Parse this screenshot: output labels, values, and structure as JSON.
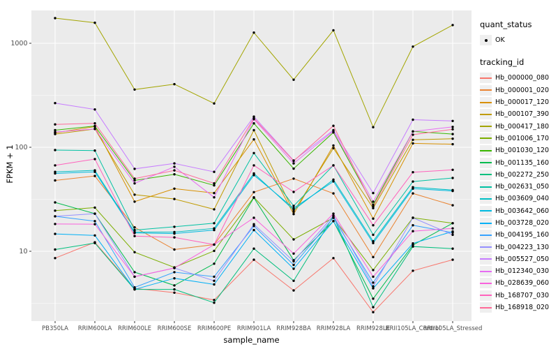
{
  "chart_data": {
    "type": "line",
    "title": "",
    "xlabel": "sample_name",
    "ylabel": "FPKM + 1",
    "y_scale": "log10",
    "y_ticks": [
      10,
      100,
      1000
    ],
    "y_minor_ticks": [
      3.162,
      31.62,
      316.2
    ],
    "ylim": [
      2.1,
      2100
    ],
    "grid": true,
    "panel_bg": "#EBEBEB",
    "grid_color": "#FFFFFF",
    "point_color": "#000000",
    "tick_label_color": "#4D4D4D",
    "legend_position": "right",
    "categories": [
      "PB350LA",
      "RRIM600LA",
      "RRIM600LE",
      "RRIM600SE",
      "RRIM600PE",
      "RRIM901LA",
      "RRIM928BA",
      "RRIM928LA",
      "RRIM928LE",
      "RRII105LA_Control",
      "RRII105LA_Stressed"
    ],
    "legend": {
      "quant_status": {
        "title": "quant_status",
        "items": [
          {
            "label": "OK",
            "symbol": "point"
          }
        ]
      },
      "tracking_id": {
        "title": "tracking_id"
      }
    },
    "series": [
      {
        "name": "Hb_000000_080",
        "color": "#F8766D",
        "values": [
          8.6,
          12.2,
          4.4,
          4.0,
          3.4,
          8.3,
          4.2,
          8.6,
          2.6,
          6.5,
          8.3
        ]
      },
      {
        "name": "Hb_000001_020",
        "color": "#EA8331",
        "values": [
          48,
          53,
          17.0,
          10.4,
          11.6,
          37,
          50,
          36,
          8.8,
          36,
          27.7
        ]
      },
      {
        "name": "Hb_000017_120",
        "color": "#D89000",
        "values": [
          138,
          158,
          30,
          40,
          36.3,
          119,
          22.8,
          104,
          20.6,
          109,
          107
        ]
      },
      {
        "name": "Hb_000107_390",
        "color": "#C09B00",
        "values": [
          134,
          150,
          35,
          31.8,
          25.3,
          146,
          24,
          98,
          26,
          118,
          121
        ]
      },
      {
        "name": "Hb_000417_180",
        "color": "#A3A500",
        "values": [
          1745,
          1574,
          359,
          404,
          264,
          1267,
          446,
          1334,
          156,
          929,
          1496
        ]
      },
      {
        "name": "Hb_001006_170",
        "color": "#7CAE00",
        "values": [
          24.6,
          26.3,
          9.8,
          7.0,
          10.1,
          33,
          13,
          21,
          6.6,
          21,
          18.6
        ]
      },
      {
        "name": "Hb_001030_120",
        "color": "#39B600",
        "values": [
          146,
          160,
          48,
          55,
          43,
          170,
          62.3,
          139,
          28,
          142,
          134
        ]
      },
      {
        "name": "Hb_001135_160",
        "color": "#00BB4E",
        "values": [
          29.5,
          23,
          6.3,
          4.7,
          7.6,
          32.7,
          8.2,
          19.5,
          3.5,
          11.5,
          18.6
        ]
      },
      {
        "name": "Hb_002272_250",
        "color": "#00BF7D",
        "values": [
          10.4,
          12,
          4.3,
          4.3,
          3.2,
          10.6,
          5.2,
          21.7,
          2.9,
          11.1,
          10.6
        ]
      },
      {
        "name": "Hb_002631_050",
        "color": "#00C1A3",
        "values": [
          94,
          93,
          16,
          17.2,
          18.6,
          88,
          27.3,
          67,
          14.4,
          46.8,
          50.7
        ]
      },
      {
        "name": "Hb_003609_040",
        "color": "#00BFC4",
        "values": [
          58,
          60,
          15.3,
          15.3,
          16.6,
          56,
          25,
          48.9,
          12.5,
          41.3,
          38.8
        ]
      },
      {
        "name": "Hb_003642_060",
        "color": "#00BAE0",
        "values": [
          56,
          58,
          15.0,
          14.8,
          16.0,
          54,
          26,
          47,
          12.0,
          40,
          38
        ]
      },
      {
        "name": "Hb_003728_020",
        "color": "#00B0F6",
        "values": [
          14.7,
          14.2,
          4.3,
          5.5,
          4.8,
          16,
          6.8,
          19.5,
          4.4,
          11.9,
          15.5
        ]
      },
      {
        "name": "Hb_004195_160",
        "color": "#35A2FF",
        "values": [
          21.7,
          19.5,
          4.5,
          6.3,
          5.7,
          17.5,
          7.4,
          21,
          5.0,
          17.8,
          15.1
        ]
      },
      {
        "name": "Hb_004223_130",
        "color": "#9590FF",
        "values": [
          21.7,
          23,
          5.7,
          6.9,
          5.2,
          18.2,
          8.0,
          22,
          4.6,
          21,
          14.4
        ]
      },
      {
        "name": "Hb_005527_050",
        "color": "#C77CFF",
        "values": [
          266,
          231,
          62,
          70,
          58,
          197,
          74.5,
          146,
          36.3,
          184,
          179
        ]
      },
      {
        "name": "Hb_012340_030",
        "color": "#E76BF3",
        "values": [
          140,
          150,
          45,
          65,
          33,
          186,
          70,
          143,
          30,
          142,
          157
        ]
      },
      {
        "name": "Hb_028639_060",
        "color": "#F962DD",
        "values": [
          18.3,
          18.2,
          5.7,
          6.9,
          11.6,
          21,
          9.5,
          23,
          5.7,
          15.6,
          16.6
        ]
      },
      {
        "name": "Hb_168707_030",
        "color": "#FF62BC",
        "values": [
          67,
          77,
          14,
          13.6,
          11.6,
          67,
          37.2,
          67,
          17.8,
          57.6,
          60.7
        ]
      },
      {
        "name": "Hb_168918_020",
        "color": "#FF6A98",
        "values": [
          166,
          170,
          50,
          60,
          45,
          190,
          74,
          161,
          27,
          132,
          149
        ]
      }
    ]
  }
}
